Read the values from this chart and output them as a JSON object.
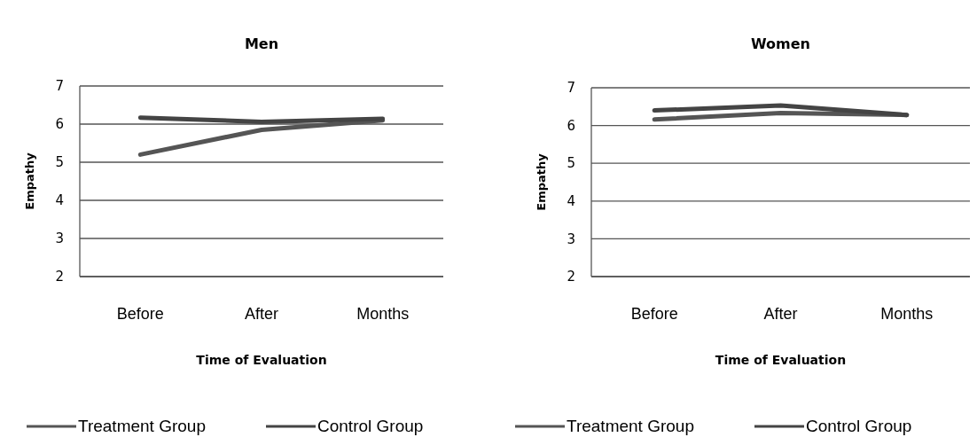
{
  "chart_data": [
    {
      "type": "line",
      "title": "Men",
      "xlabel": "Time of Evaluation",
      "ylabel": "Empathy",
      "categories": [
        "Before",
        "After",
        "Months"
      ],
      "ylim": [
        2,
        7
      ],
      "yticks": [
        2,
        3,
        4,
        5,
        6,
        7
      ],
      "grid": "y",
      "legend": "bottom",
      "marker": "none",
      "line_style": "solid",
      "series": [
        {
          "name": "Treatment Group",
          "color": "#555555",
          "values": [
            5.2,
            5.85,
            6.1
          ]
        },
        {
          "name": "Control Group",
          "color": "#444444",
          "values": [
            6.17,
            6.06,
            6.14
          ]
        }
      ]
    },
    {
      "type": "line",
      "title": "Women",
      "xlabel": "Time of Evaluation",
      "ylabel": "Empathy",
      "categories": [
        "Before",
        "After",
        "Months"
      ],
      "ylim": [
        2,
        7
      ],
      "yticks": [
        2,
        3,
        4,
        5,
        6,
        7
      ],
      "grid": "y",
      "legend": "bottom",
      "marker": "none",
      "line_style": "solid",
      "series": [
        {
          "name": "Treatment Group",
          "color": "#555555",
          "values": [
            6.16,
            6.33,
            6.28
          ]
        },
        {
          "name": "Control Group",
          "color": "#444444",
          "values": [
            6.4,
            6.53,
            6.28
          ]
        }
      ]
    }
  ]
}
